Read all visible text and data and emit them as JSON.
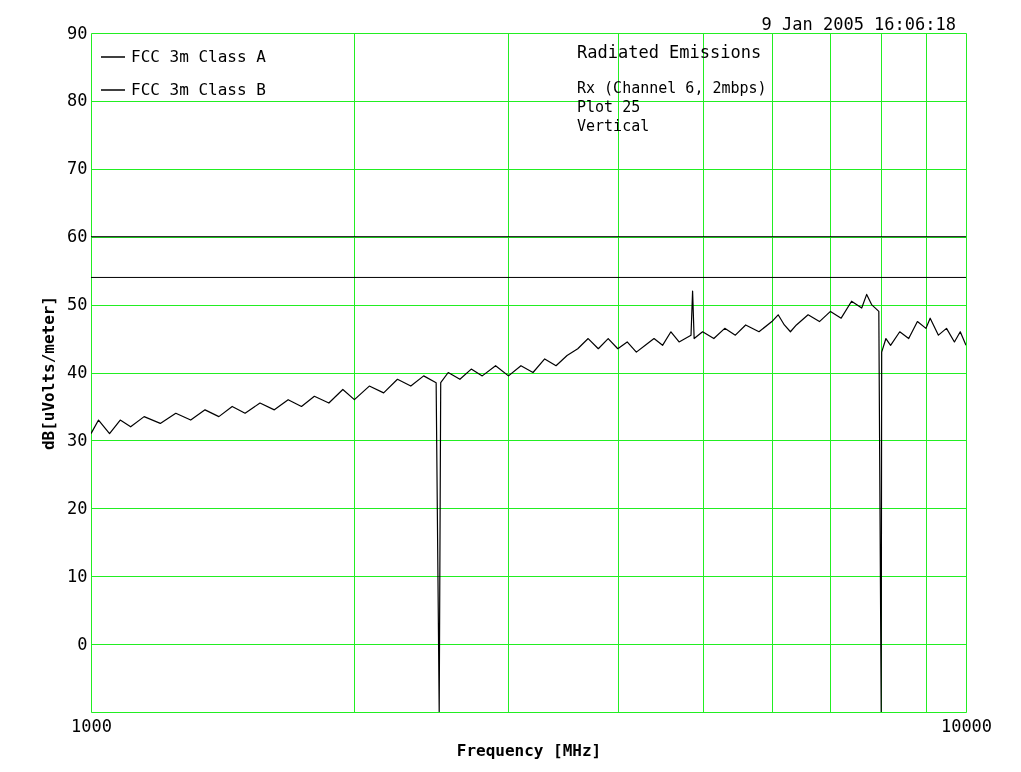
{
  "chart_data": {
    "type": "line",
    "xlabel": "Frequency [MHz]",
    "ylabel": "dB[uVolts/meter]",
    "annotations": [
      "9 Jan 2005   16:06:18",
      "Radiated Emissions",
      "Rx (Channel 6, 2mbps)",
      "Plot 25",
      "Vertical"
    ],
    "log": "x",
    "grid": true,
    "legend": "top left",
    "xlim": [
      1000,
      10000
    ],
    "xticks": [
      1000,
      {
        "value": 2000,
        "label": null
      },
      {
        "value": 3000,
        "label": null
      },
      {
        "value": 4000,
        "label": null
      },
      {
        "value": 5000,
        "label": null
      },
      {
        "value": 6000,
        "label": null
      },
      {
        "value": 7000,
        "label": null
      },
      {
        "value": 8000,
        "label": null
      },
      {
        "value": 9000,
        "label": null
      },
      10000
    ],
    "ylim": [
      -10,
      90
    ],
    "yticks": [
      {
        "value": -10,
        "label": null
      },
      0,
      10,
      20,
      30,
      40,
      50,
      60,
      70,
      80,
      90
    ],
    "ref_lines": [
      {
        "axis": "y",
        "value": 60,
        "label": "FCC 3m Class A",
        "color": "#000000"
      },
      {
        "axis": "y",
        "value": 54,
        "label": "FCC 3m Class B",
        "color": "#000000"
      }
    ],
    "series": [
      {
        "color": "#000000",
        "x": [
          1000,
          1020,
          1050,
          1080,
          1110,
          1150,
          1200,
          1250,
          1300,
          1350,
          1400,
          1450,
          1500,
          1560,
          1620,
          1680,
          1740,
          1800,
          1870,
          1940,
          2000,
          2080,
          2160,
          2240,
          2320,
          2400,
          2480,
          2500,
          2510,
          2560,
          2640,
          2720,
          2800,
          2900,
          3000,
          3100,
          3200,
          3300,
          3400,
          3500,
          3600,
          3700,
          3800,
          3900,
          4000,
          4100,
          4200,
          4300,
          4400,
          4500,
          4600,
          4700,
          4850,
          4870,
          4890,
          5000,
          5150,
          5300,
          5450,
          5600,
          5800,
          6000,
          6100,
          6200,
          6300,
          6400,
          6600,
          6800,
          7000,
          7200,
          7400,
          7600,
          7700,
          7800,
          7950,
          8000,
          8010,
          8100,
          8200,
          8400,
          8600,
          8800,
          9000,
          9100,
          9300,
          9500,
          9700,
          9850,
          10000
        ],
        "values": [
          31,
          33,
          31,
          33,
          32,
          33.5,
          32.5,
          34,
          33,
          34.5,
          33.5,
          35,
          34,
          35.5,
          34.5,
          36,
          35,
          36.5,
          35.5,
          37.5,
          36,
          38,
          37,
          39,
          38,
          39.5,
          38.5,
          -10,
          38.5,
          40,
          39,
          40.5,
          39.5,
          41,
          39.5,
          41,
          40,
          42,
          41,
          42.5,
          43.5,
          45,
          43.5,
          45,
          43.5,
          44.5,
          43,
          44,
          45,
          44,
          46,
          44.5,
          45.5,
          52,
          45,
          46,
          45,
          46.5,
          45.5,
          47,
          46,
          47.5,
          48.5,
          47,
          46,
          47,
          48.5,
          47.5,
          49,
          48,
          50.5,
          49.5,
          51.5,
          50,
          49,
          -10,
          43,
          45,
          44,
          46,
          45,
          47.5,
          46.5,
          48,
          45.5,
          46.5,
          44.5,
          46,
          44
        ]
      }
    ]
  }
}
